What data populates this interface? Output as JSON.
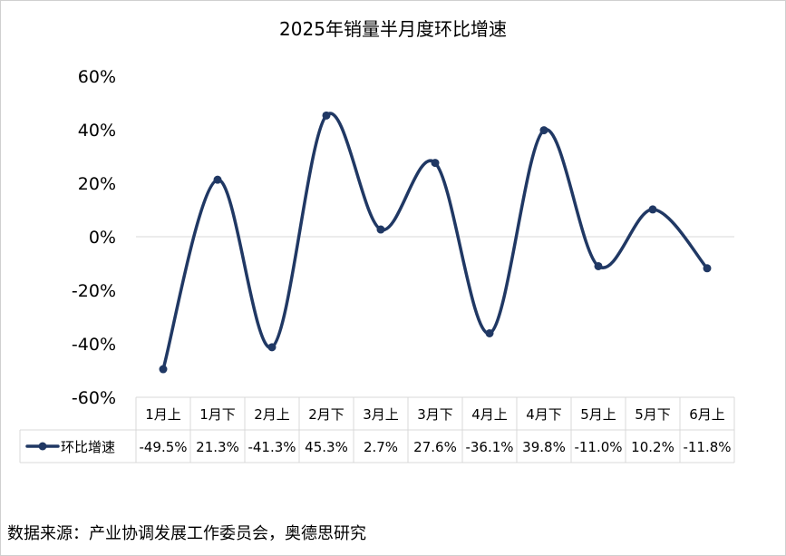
{
  "chart_data": {
    "type": "line",
    "title": "2025年销量半月度环比增速",
    "categories": [
      "1月上",
      "1月下",
      "2月上",
      "2月下",
      "3月上",
      "3月下",
      "4月上",
      "4月下",
      "5月上",
      "5月下",
      "6月上"
    ],
    "series": [
      {
        "name": "环比增速",
        "values": [
          -49.5,
          21.3,
          -41.3,
          45.3,
          2.7,
          27.6,
          -36.1,
          39.8,
          -11.0,
          10.2,
          -11.8
        ],
        "labels": [
          "-49.5%",
          "21.3%",
          "-41.3%",
          "45.3%",
          "2.7%",
          "27.6%",
          "-36.1%",
          "39.8%",
          "-11.0%",
          "10.2%",
          "-11.8%"
        ],
        "color": "#203864"
      }
    ],
    "ylim": [
      -60,
      60
    ],
    "yticks": [
      60,
      40,
      20,
      0,
      -20,
      -40,
      -60
    ],
    "ytick_labels": [
      "60%",
      "40%",
      "20%",
      "0%",
      "-20%",
      "-40%",
      "-60%"
    ],
    "smooth": true,
    "grid": false,
    "data_table": true
  },
  "source": "数据来源：产业协调发展工作委员会，奥德思研究"
}
